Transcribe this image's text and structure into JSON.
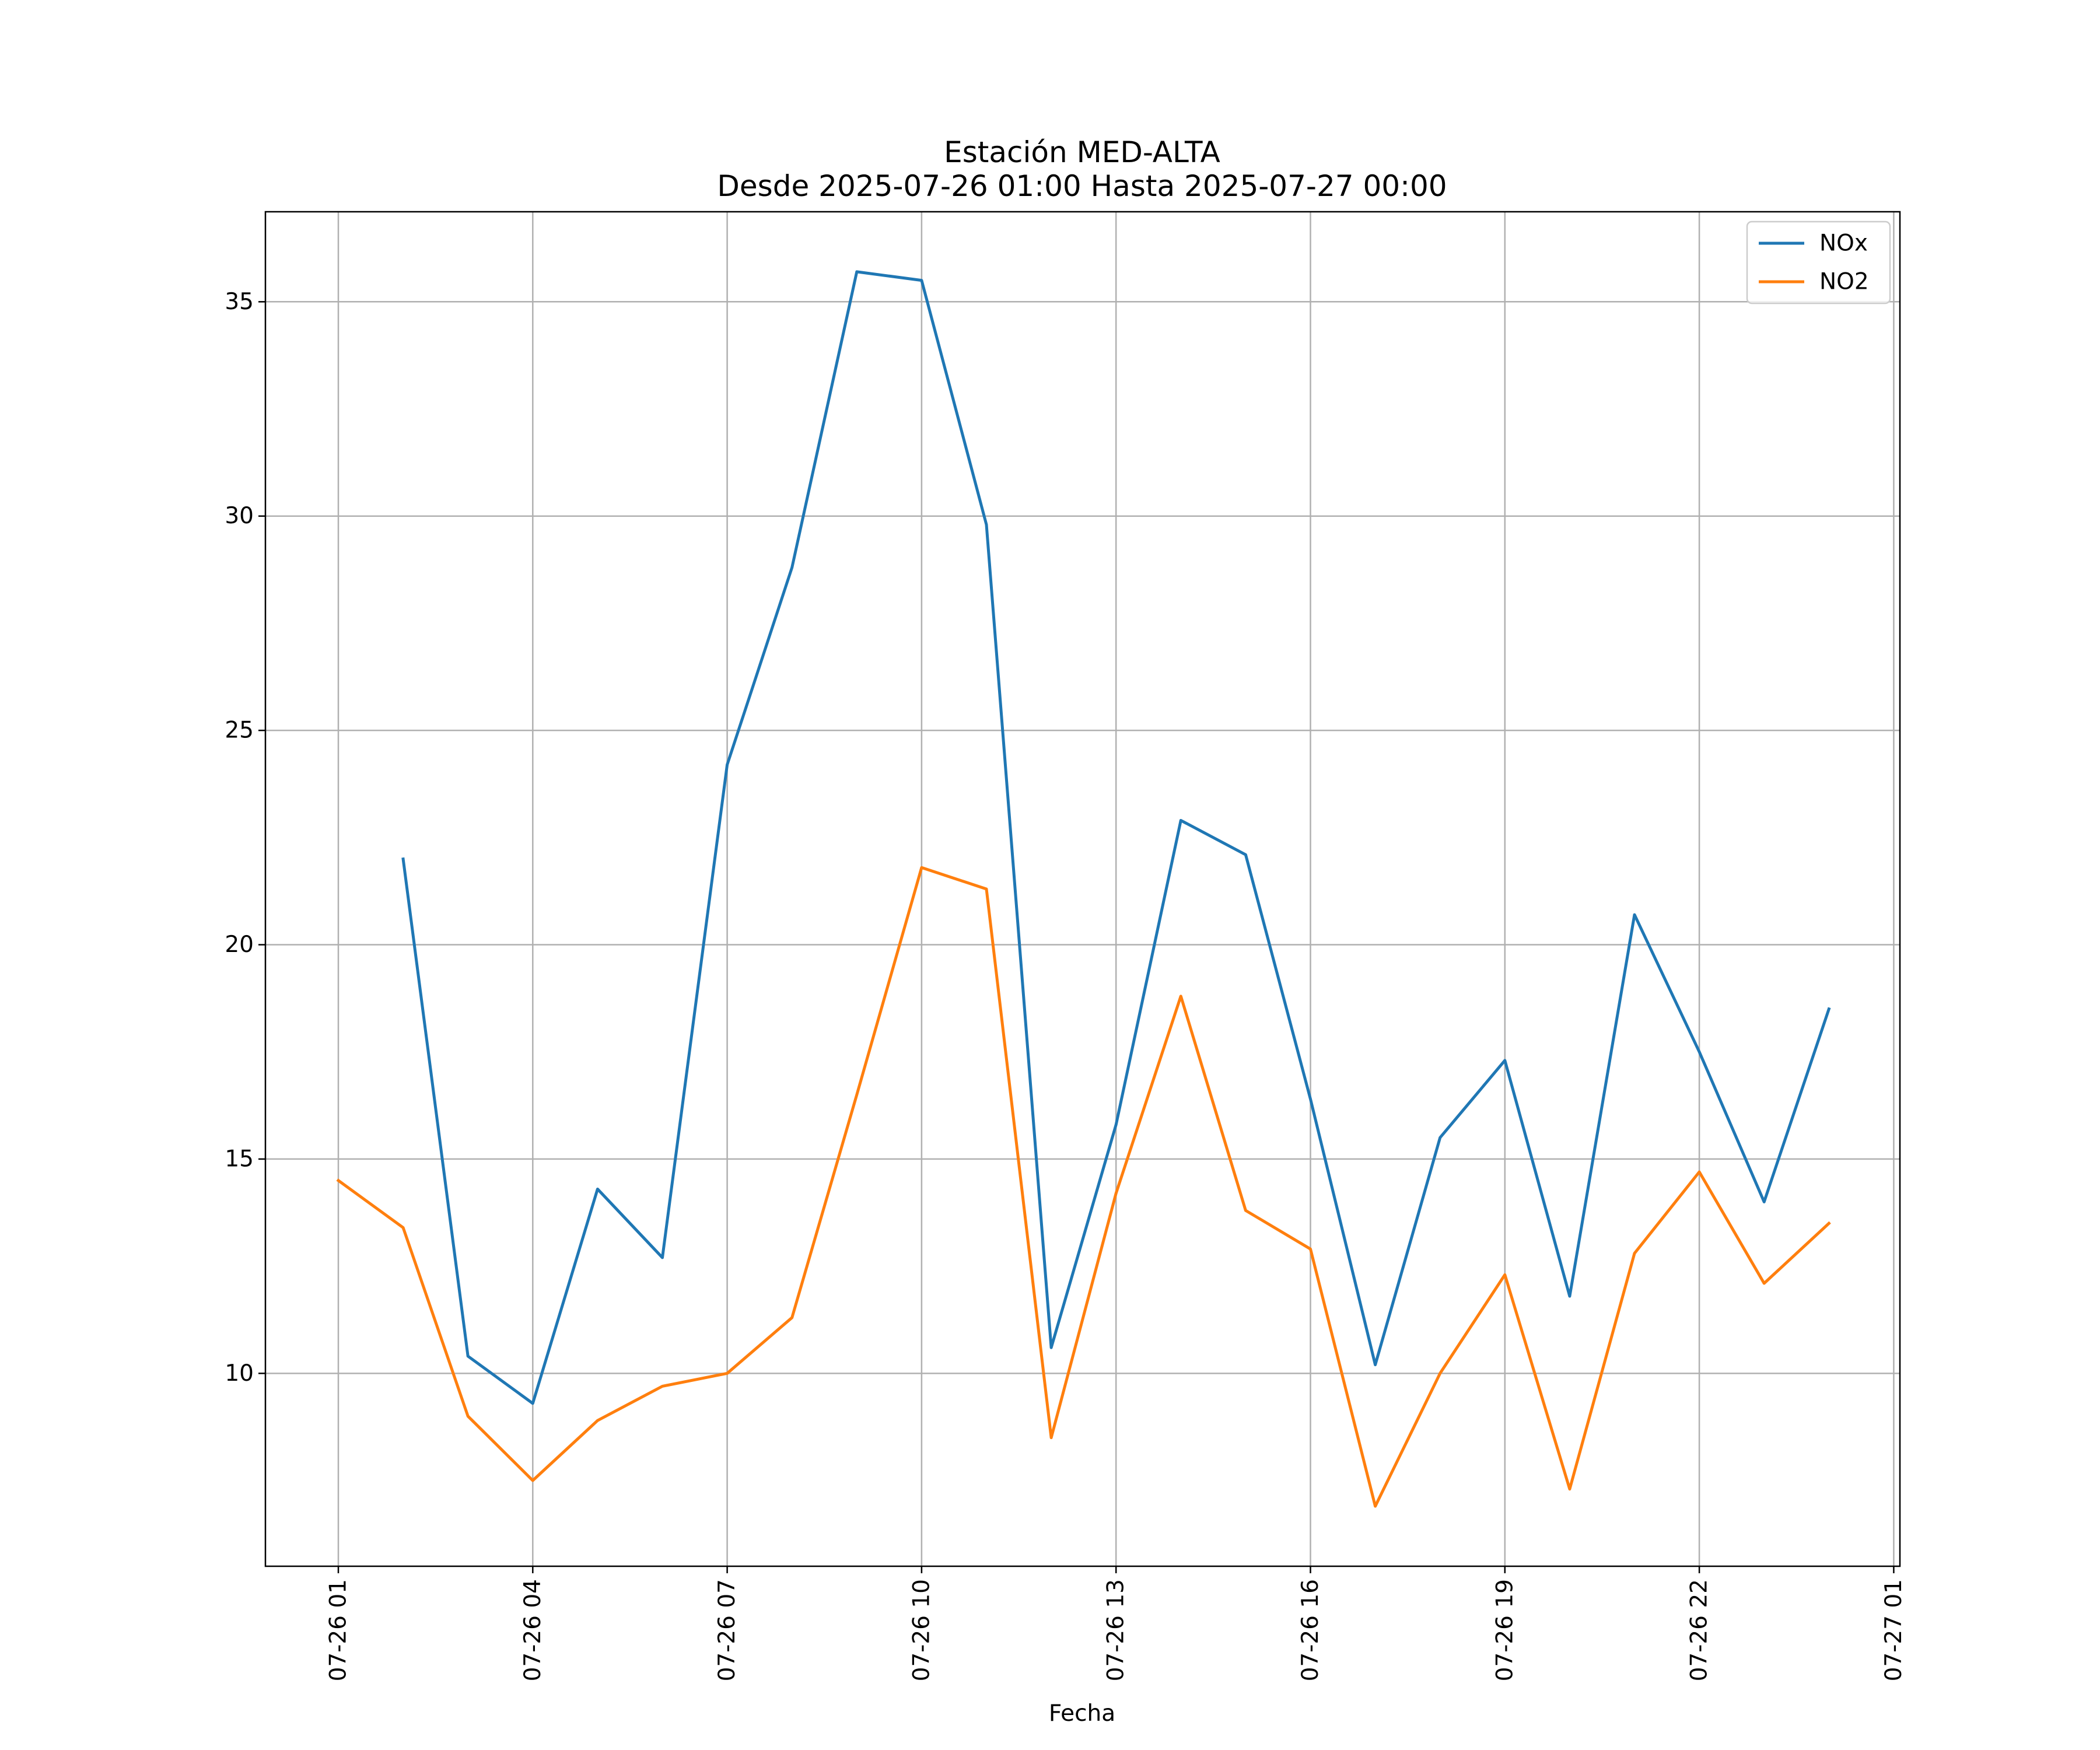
{
  "chart_data": {
    "type": "line",
    "title": [
      "Estación MED-ALTA",
      "Desde 2025-07-26 01:00 Hasta 2025-07-27 00:00"
    ],
    "xlabel": "Fecha",
    "ylabel": "",
    "x": [
      "07-26 01",
      "07-26 02",
      "07-26 03",
      "07-26 04",
      "07-26 05",
      "07-26 06",
      "07-26 07",
      "07-26 08",
      "07-26 09",
      "07-26 10",
      "07-26 11",
      "07-26 12",
      "07-26 13",
      "07-26 14",
      "07-26 15",
      "07-26 16",
      "07-26 17",
      "07-26 18",
      "07-26 19",
      "07-26 20",
      "07-26 21",
      "07-26 22",
      "07-26 23",
      "07-27 00"
    ],
    "x_tick_labels": [
      "07-26 01",
      "07-26 04",
      "07-26 07",
      "07-26 10",
      "07-26 13",
      "07-26 16",
      "07-26 19",
      "07-26 22",
      "07-27 01"
    ],
    "y_ticks": [
      10,
      15,
      20,
      25,
      30,
      35
    ],
    "ylim": [
      5.5,
      37.1
    ],
    "grid": true,
    "legend_position": "top-right",
    "series": [
      {
        "name": "NOx",
        "color": "#1f77b4",
        "values": [
          null,
          22.0,
          10.4,
          9.3,
          14.3,
          12.7,
          24.2,
          28.8,
          35.7,
          35.5,
          29.8,
          10.6,
          15.8,
          22.9,
          22.1,
          16.4,
          10.2,
          15.5,
          17.3,
          11.8,
          20.7,
          17.5,
          14.0,
          18.5
        ]
      },
      {
        "name": "NO2",
        "color": "#ff7f0e",
        "values": [
          14.5,
          13.4,
          9.0,
          7.5,
          8.9,
          9.7,
          10.0,
          11.3,
          16.5,
          21.8,
          21.3,
          8.5,
          14.2,
          18.8,
          13.8,
          12.9,
          6.9,
          10.0,
          12.3,
          7.3,
          12.8,
          14.7,
          12.1,
          13.5
        ]
      }
    ]
  }
}
